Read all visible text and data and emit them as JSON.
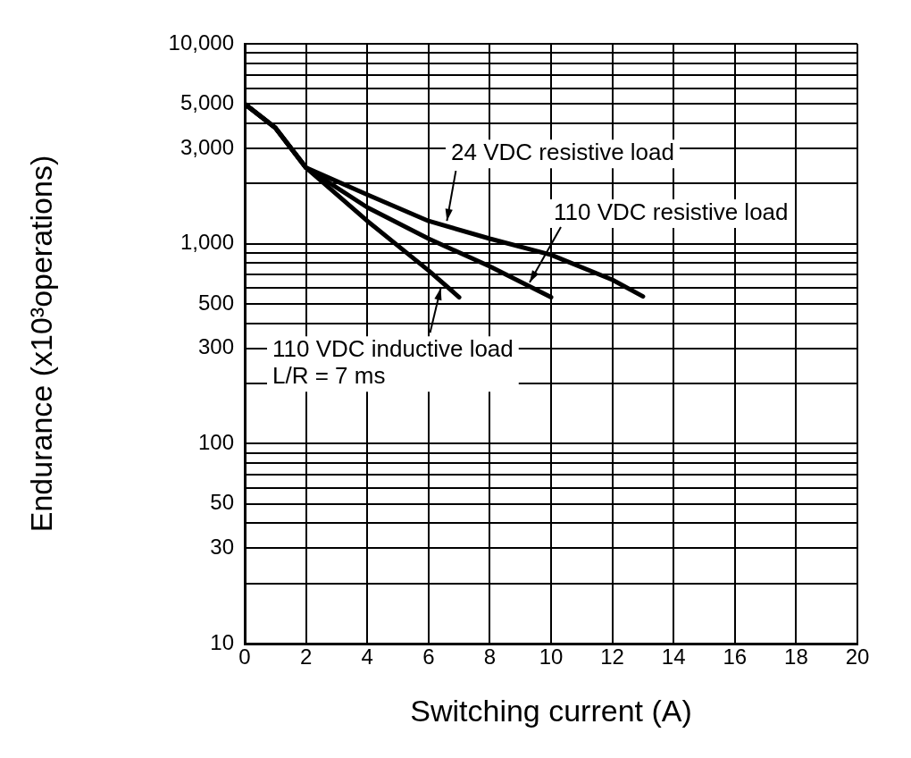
{
  "chart_data": {
    "type": "line",
    "xlabel": "Switching current (A)",
    "ylabel": "Endurance (x10³operations)",
    "xlim": [
      0,
      20
    ],
    "xticks": [
      0,
      2,
      4,
      6,
      8,
      10,
      12,
      14,
      16,
      18,
      20
    ],
    "ylim": [
      10,
      10000
    ],
    "log": "y",
    "grid": true,
    "legend": false,
    "marker": "none",
    "line_style": "solid",
    "yticks": [
      {
        "value": 10,
        "label": "10"
      },
      {
        "value": 20,
        "label": null
      },
      {
        "value": 30,
        "label": "30"
      },
      {
        "value": 40,
        "label": null
      },
      {
        "value": 50,
        "label": "50"
      },
      {
        "value": 60,
        "label": null
      },
      {
        "value": 70,
        "label": null
      },
      {
        "value": 80,
        "label": null
      },
      {
        "value": 90,
        "label": null
      },
      {
        "value": 100,
        "label": "100"
      },
      {
        "value": 200,
        "label": null
      },
      {
        "value": 300,
        "label": "300"
      },
      {
        "value": 400,
        "label": null
      },
      {
        "value": 500,
        "label": "500"
      },
      {
        "value": 600,
        "label": null
      },
      {
        "value": 700,
        "label": null
      },
      {
        "value": 800,
        "label": null
      },
      {
        "value": 900,
        "label": null
      },
      {
        "value": 1000,
        "label": "1,000"
      },
      {
        "value": 2000,
        "label": null
      },
      {
        "value": 3000,
        "label": "3,000"
      },
      {
        "value": 4000,
        "label": null
      },
      {
        "value": 5000,
        "label": "5,000"
      },
      {
        "value": 6000,
        "label": null
      },
      {
        "value": 7000,
        "label": null
      },
      {
        "value": 8000,
        "label": null
      },
      {
        "value": 9000,
        "label": null
      },
      {
        "value": 10000,
        "label": "10,000"
      }
    ],
    "series": [
      {
        "color": "#000000",
        "x": [
          0,
          1,
          2,
          4,
          6,
          8,
          10,
          12,
          13
        ],
        "values": [
          5000,
          3800,
          2400,
          1760,
          1300,
          1060,
          880,
          660,
          545
        ]
      },
      {
        "color": "#000000",
        "x": [
          0,
          1,
          2,
          4,
          6,
          8,
          10
        ],
        "values": [
          5000,
          3800,
          2400,
          1520,
          1060,
          770,
          540
        ]
      },
      {
        "color": "#000000",
        "x": [
          0,
          1,
          2,
          4,
          6,
          7
        ],
        "values": [
          5000,
          3800,
          2400,
          1300,
          735,
          540
        ]
      }
    ],
    "annotations": [
      {
        "text": "24 VDC resistive load",
        "x": 6.6,
        "y": 1300
      },
      {
        "text": "110 VDC resistive load",
        "x": 9.3,
        "y": 640
      },
      {
        "text": "110 VDC inductive load\nL/R = 7 ms",
        "x": 6.4,
        "y": 600
      }
    ]
  }
}
